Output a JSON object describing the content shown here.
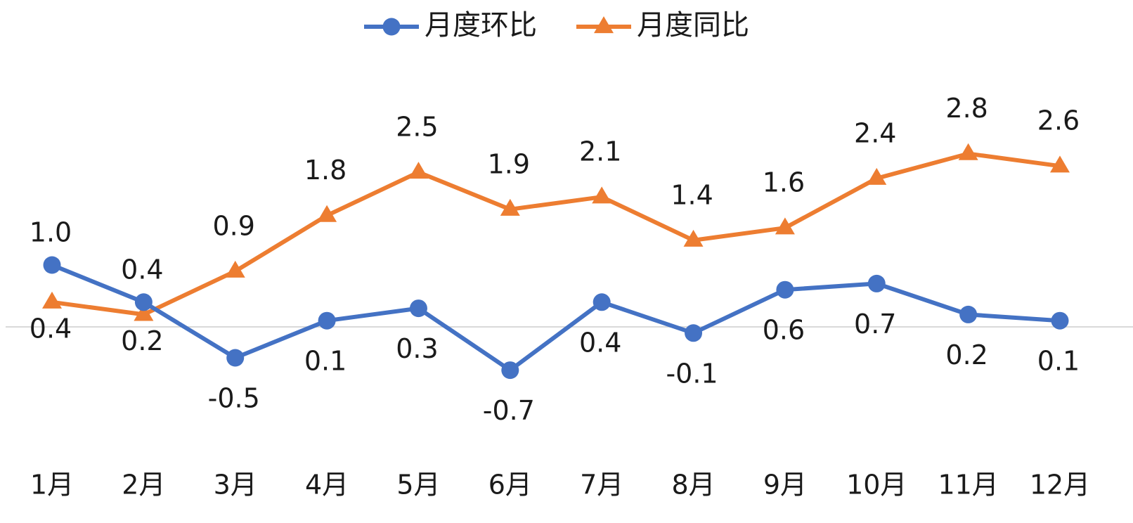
{
  "chart_data": {
    "type": "line",
    "title": "",
    "xlabel": "",
    "ylabel": "",
    "categories": [
      "1月",
      "2月",
      "3月",
      "4月",
      "5月",
      "6月",
      "7月",
      "8月",
      "9月",
      "10月",
      "11月",
      "12月"
    ],
    "ylim": [
      -2,
      3.6
    ],
    "grid": false,
    "zero_line": true,
    "legend_position": "top-center",
    "series": [
      {
        "name": "月度环比",
        "marker": "circle",
        "color": "#4472C4",
        "values": [
          1.0,
          0.4,
          -0.5,
          0.1,
          0.3,
          -0.7,
          0.4,
          -0.1,
          0.6,
          0.7,
          0.2,
          0.1
        ],
        "labels": [
          "1.0",
          "0.4",
          "-0.5",
          "0.1",
          "0.3",
          "-0.7",
          "0.4",
          "-0.1",
          "0.6",
          "0.7",
          "0.2",
          "0.1"
        ]
      },
      {
        "name": "月度同比",
        "marker": "triangle",
        "color": "#ED7D31",
        "values": [
          0.4,
          0.2,
          0.9,
          1.8,
          2.5,
          1.9,
          2.1,
          1.4,
          1.6,
          2.4,
          2.8,
          2.6
        ],
        "labels": [
          "0.4",
          "0.2",
          "0.9",
          "1.8",
          "2.5",
          "1.9",
          "2.1",
          "1.4",
          "1.6",
          "2.4",
          "2.8",
          "2.6"
        ]
      }
    ],
    "axis_color": "#d9d9d9"
  }
}
